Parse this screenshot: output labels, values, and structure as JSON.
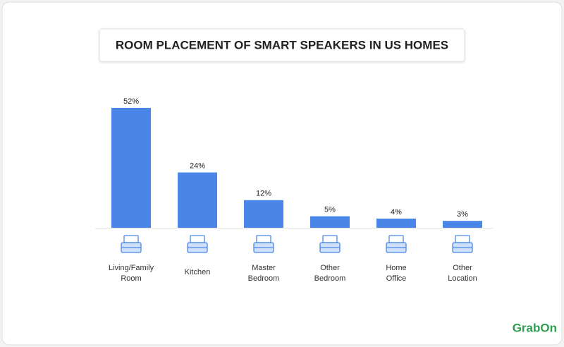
{
  "chart_data": {
    "type": "bar",
    "title": "ROOM PLACEMENT OF SMART SPEAKERS IN US HOMES",
    "categories": [
      "Living/Family Room",
      "Kitchen",
      "Master Bedroom",
      "Other Bedroom",
      "Home Office",
      "Other Location"
    ],
    "values": [
      52,
      24,
      12,
      5,
      4,
      3
    ],
    "value_labels": [
      "52%",
      "24%",
      "12%",
      "5%",
      "4%",
      "3%"
    ],
    "color": "#4a86e8"
  },
  "brand": "GrabOn"
}
